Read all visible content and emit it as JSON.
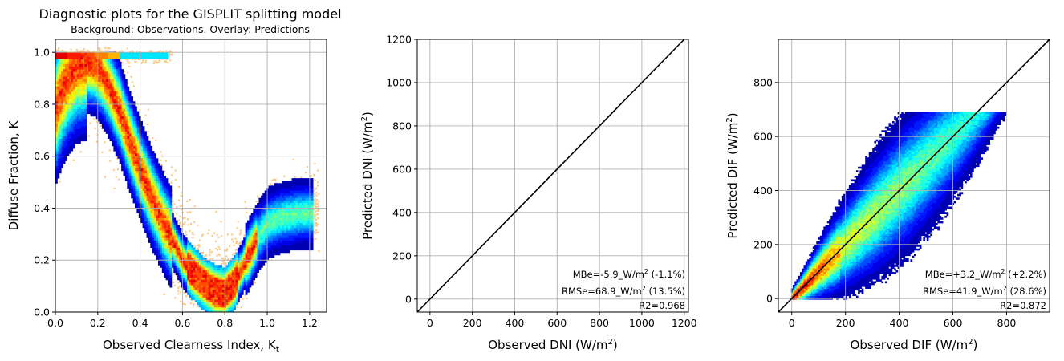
{
  "figure": {
    "title": "Diagnostic plots for the GISPLIT splitting model",
    "subtitle": "Background: Observations. Overlay: Predictions"
  },
  "chart_data": [
    {
      "type": "heatmap",
      "name": "diffuse-fraction-vs-clearness",
      "xlabel_main": "Observed Clearness Index, K",
      "xlabel_sub": "t",
      "ylabel": "Diffuse Fraction, K",
      "xlim": [
        0.0,
        1.28
      ],
      "ylim": [
        0.0,
        1.05
      ],
      "xticks": [
        "0.0",
        "0.2",
        "0.4",
        "0.6",
        "0.8",
        "1.0",
        "1.2"
      ],
      "yticks": [
        "0.0",
        "0.2",
        "0.4",
        "0.6",
        "0.8",
        "1.0"
      ],
      "grid": true,
      "colormap": "jet",
      "background_color": "#fdc98a",
      "predicted_curve_x": [
        0.0,
        0.03,
        0.06,
        0.1,
        0.15,
        0.2,
        0.25,
        0.3,
        0.35,
        0.4,
        0.45,
        0.5,
        0.55,
        0.6,
        0.65,
        0.7,
        0.75,
        0.8,
        0.85,
        0.9,
        0.95,
        1.0,
        1.05,
        1.1,
        1.15,
        1.2
      ],
      "predicted_curve_y": [
        0.78,
        0.85,
        0.9,
        0.95,
        0.96,
        0.94,
        0.87,
        0.78,
        0.66,
        0.55,
        0.45,
        0.36,
        0.28,
        0.2,
        0.15,
        0.11,
        0.08,
        0.07,
        0.12,
        0.2,
        0.28,
        0.34,
        0.36,
        0.37,
        0.38,
        0.38
      ]
    },
    {
      "type": "heatmap",
      "name": "dni-scatter",
      "xlabel_main": "Observed DNI (W/m",
      "ylabel_main": "Predicted DNI (W/m",
      "unit_sup": "2",
      "label_close": ")",
      "xlim": [
        -60,
        1220
      ],
      "ylim": [
        -60,
        1200
      ],
      "xticks": [
        "0",
        "200",
        "400",
        "600",
        "800",
        "1000",
        "1200"
      ],
      "yticks": [
        "0",
        "200",
        "400",
        "600",
        "800",
        "1000",
        "1200"
      ],
      "grid": true,
      "colormap": "jet",
      "identity_line": true,
      "stats": {
        "mbe_prefix": "MBe=-5.9_W/m",
        "mbe_suffix": " (-1.1%)",
        "rmse_prefix": "RMSe=68.9_W/m",
        "rmse_suffix": " (13.5%)",
        "sup": "2",
        "r2": "R2=0.968"
      }
    },
    {
      "type": "heatmap",
      "name": "dif-scatter",
      "xlabel_main": "Observed DIF (W/m",
      "ylabel_main": "Predicted DIF (W/m",
      "unit_sup": "2",
      "label_close": ")",
      "xlim": [
        -50,
        960
      ],
      "ylim": [
        -50,
        960
      ],
      "xticks": [
        "0",
        "200",
        "400",
        "600",
        "800"
      ],
      "yticks": [
        "0",
        "200",
        "400",
        "600",
        "800"
      ],
      "grid": true,
      "colormap": "jet",
      "identity_line": true,
      "stats": {
        "mbe_prefix": "MBe=+3.2_W/m",
        "mbe_suffix": " (+2.2%)",
        "rmse_prefix": "RMSe=41.9_W/m",
        "rmse_suffix": " (28.6%)",
        "sup": "2",
        "r2": "R2=0.872"
      }
    }
  ]
}
